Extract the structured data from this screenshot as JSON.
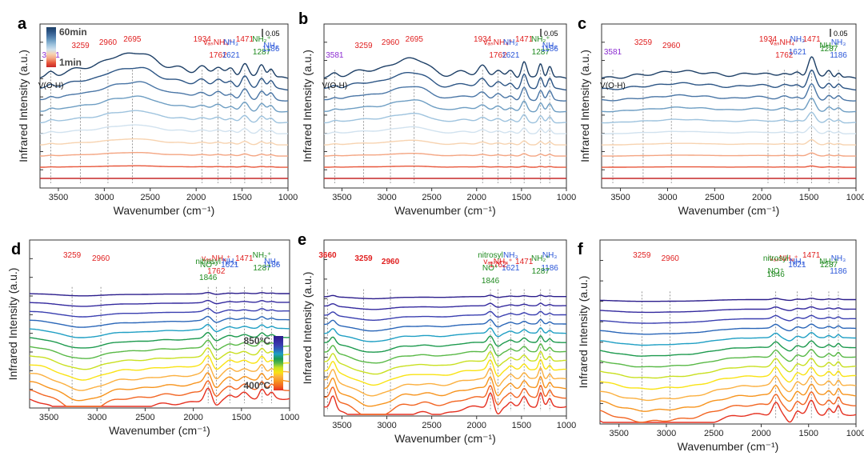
{
  "colors": {
    "time_scale": [
      "#c62828",
      "#e8573b",
      "#f4a582",
      "#f7d3b0",
      "#d1e2ef",
      "#9ec3de",
      "#6e9ec3",
      "#4a76a6",
      "#2c5585",
      "#1d3f66"
    ],
    "temp_scale": [
      "#e53020",
      "#f26522",
      "#f7941d",
      "#fbb040",
      "#f9e313",
      "#c9e021",
      "#59b947",
      "#1d9a4e",
      "#1f9fc4",
      "#2a66b8",
      "#3a3fb0",
      "#33299e",
      "#2b1d8c"
    ],
    "red": "#e02020",
    "blue": "#2a56d8",
    "green": "#1f8a1f",
    "purple": "#8b2bd1",
    "black": "#111111"
  },
  "chart_data": [
    {
      "panel": "a",
      "type": "line",
      "xlabel": "Wavenumber (cm⁻¹)",
      "ylabel": "Infrared Intensity (a.u.)",
      "xlim": [
        3700,
        1000
      ],
      "xticks": [
        3500,
        3000,
        2500,
        2000,
        1500,
        1000
      ],
      "scale_bar": "0.05",
      "legend": {
        "top": "60min",
        "bottom": "1min"
      },
      "annotations": [
        {
          "text": "2695",
          "x": 2695,
          "color": "red"
        },
        {
          "text": "2960",
          "x": 2960,
          "color": "red"
        },
        {
          "text": "3259",
          "x": 3259,
          "color": "red"
        },
        {
          "text": "1934",
          "x": 1934,
          "color": "red"
        },
        {
          "text": "vₐₛNH₄⁺",
          "x": 1762,
          "color": "red"
        },
        {
          "text": "1762",
          "x": 1762,
          "color": "red"
        },
        {
          "text": "1471",
          "x": 1471,
          "color": "red"
        },
        {
          "text": "NH₃",
          "x": 1621,
          "color": "blue"
        },
        {
          "text": "1621",
          "x": 1621,
          "color": "blue"
        },
        {
          "text": "NH₂⁺",
          "x": 1287,
          "color": "green"
        },
        {
          "text": "1287",
          "x": 1287,
          "color": "green"
        },
        {
          "text": "NH₃",
          "x": 1186,
          "color": "blue"
        },
        {
          "text": "1186",
          "x": 1186,
          "color": "blue"
        },
        {
          "text": "V(O-H)",
          "x": 3581,
          "color": "black"
        },
        {
          "text": "3581",
          "x": 3581,
          "color": "purple"
        }
      ],
      "dashed_lines": [
        3581,
        3259,
        2960,
        2695,
        1934,
        1762,
        1621,
        1471,
        1287,
        1186
      ],
      "series_count": 10,
      "bands": [
        [
          3581,
          0.5,
          40
        ],
        [
          3259,
          1.0,
          160
        ],
        [
          2960,
          0.9,
          110
        ],
        [
          2695,
          2.2,
          200
        ],
        [
          2450,
          0.9,
          180
        ],
        [
          2150,
          0.8,
          90
        ],
        [
          1934,
          1.1,
          60
        ],
        [
          1762,
          1.2,
          55
        ],
        [
          1621,
          0.9,
          40
        ],
        [
          1471,
          1.6,
          40
        ],
        [
          1287,
          1.4,
          35
        ],
        [
          1186,
          1.0,
          30
        ]
      ]
    },
    {
      "panel": "b",
      "type": "line",
      "xlabel": "Wavenumber (cm⁻¹)",
      "ylabel": "Infrared Intensity (a.u.)",
      "xlim": [
        3700,
        1000
      ],
      "xticks": [
        3500,
        3000,
        2500,
        2000,
        1500,
        1000
      ],
      "scale_bar": "0.05",
      "annotations": [
        {
          "text": "2695",
          "x": 2695,
          "color": "red"
        },
        {
          "text": "2960",
          "x": 2960,
          "color": "red"
        },
        {
          "text": "3259",
          "x": 3259,
          "color": "red"
        },
        {
          "text": "1934",
          "x": 1934,
          "color": "red"
        },
        {
          "text": "vₐₛNH₄⁺",
          "x": 1762,
          "color": "red"
        },
        {
          "text": "1762",
          "x": 1762,
          "color": "red"
        },
        {
          "text": "1471",
          "x": 1471,
          "color": "red"
        },
        {
          "text": "NH₃",
          "x": 1621,
          "color": "blue"
        },
        {
          "text": "1621",
          "x": 1621,
          "color": "blue"
        },
        {
          "text": "NH₂⁺",
          "x": 1287,
          "color": "green"
        },
        {
          "text": "1287",
          "x": 1287,
          "color": "green"
        },
        {
          "text": "NH₃",
          "x": 1186,
          "color": "blue"
        },
        {
          "text": "1186",
          "x": 1186,
          "color": "blue"
        },
        {
          "text": "V(O-H)",
          "x": 3581,
          "color": "black"
        },
        {
          "text": "3581",
          "x": 3581,
          "color": "purple"
        }
      ],
      "dashed_lines": [
        3581,
        3259,
        2960,
        2695,
        1934,
        1762,
        1621,
        1471,
        1287,
        1186
      ],
      "series_count": 10,
      "bands": [
        [
          3581,
          0.4,
          40
        ],
        [
          3259,
          0.8,
          150
        ],
        [
          2960,
          0.7,
          110
        ],
        [
          2695,
          2.0,
          170
        ],
        [
          2150,
          0.7,
          90
        ],
        [
          1934,
          1.2,
          50
        ],
        [
          1762,
          0.9,
          45
        ],
        [
          1621,
          0.7,
          35
        ],
        [
          1471,
          1.8,
          30
        ],
        [
          1287,
          1.5,
          25
        ],
        [
          1186,
          1.3,
          25
        ]
      ]
    },
    {
      "panel": "c",
      "type": "line",
      "xlabel": "Wavenumber (cm⁻¹)",
      "ylabel": "Infrared Intensity (a.u.)",
      "xlim": [
        3700,
        1000
      ],
      "xticks": [
        3500,
        3000,
        2500,
        2000,
        1500,
        1000
      ],
      "scale_bar": "0.05",
      "annotations": [
        {
          "text": "1471",
          "x": 1471,
          "color": "red"
        },
        {
          "text": "3259",
          "x": 3259,
          "color": "red"
        },
        {
          "text": "2960",
          "x": 2960,
          "color": "red"
        },
        {
          "text": "1934",
          "x": 1934,
          "color": "red"
        },
        {
          "text": "vₐₛNH₄⁺",
          "x": 1762,
          "color": "red"
        },
        {
          "text": "1762",
          "x": 1762,
          "color": "red"
        },
        {
          "text": "NH₃",
          "x": 1621,
          "color": "blue"
        },
        {
          "text": "1621",
          "x": 1621,
          "color": "blue"
        },
        {
          "text": "NH₂⁺",
          "x": 1287,
          "color": "green"
        },
        {
          "text": "1287",
          "x": 1287,
          "color": "green"
        },
        {
          "text": "NH₃",
          "x": 1186,
          "color": "blue"
        },
        {
          "text": "1186",
          "x": 1186,
          "color": "blue"
        },
        {
          "text": "V(O-H)",
          "x": 3581,
          "color": "black"
        },
        {
          "text": "3581",
          "x": 3581,
          "color": "purple"
        }
      ],
      "dashed_lines": [
        3581,
        3259,
        2960,
        1934,
        1762,
        1621,
        1471,
        1287,
        1186
      ],
      "series_count": 10,
      "bands": [
        [
          3259,
          0.3,
          150
        ],
        [
          2960,
          0.3,
          120
        ],
        [
          2700,
          0.6,
          250
        ],
        [
          2050,
          0.5,
          150
        ],
        [
          1762,
          0.5,
          50
        ],
        [
          1621,
          0.5,
          40
        ],
        [
          1471,
          2.3,
          40
        ],
        [
          1287,
          0.8,
          30
        ],
        [
          1186,
          0.6,
          25
        ]
      ]
    },
    {
      "panel": "d",
      "type": "line",
      "xlabel": "Wavenumber (cm⁻¹)",
      "ylabel": "Infrared Intensity (a.u.)",
      "xlim": [
        3700,
        1000
      ],
      "xticks": [
        3500,
        3000,
        2500,
        2000,
        1500,
        1000
      ],
      "legend": {
        "top": "850°C",
        "bottom": "400°C"
      },
      "annotations": [
        {
          "text": "3259",
          "x": 3259,
          "color": "red"
        },
        {
          "text": "2960",
          "x": 2960,
          "color": "red"
        },
        {
          "text": "NH₃",
          "x": 1621,
          "color": "blue"
        },
        {
          "text": "1621",
          "x": 1621,
          "color": "blue"
        },
        {
          "text": "1471",
          "x": 1471,
          "color": "red"
        },
        {
          "text": "NH₃",
          "x": 1186,
          "color": "blue"
        },
        {
          "text": "1186",
          "x": 1186,
          "color": "blue"
        },
        {
          "text": "vₐₛNH₄⁺",
          "x": 1762,
          "color": "red"
        },
        {
          "text": "1762",
          "x": 1762,
          "color": "red"
        },
        {
          "text": "NH₂⁺",
          "x": 1287,
          "color": "green"
        },
        {
          "text": "1287",
          "x": 1287,
          "color": "green"
        },
        {
          "text": "nitrosyl",
          "x": 1846,
          "color": "green"
        },
        {
          "text": "NO⁺",
          "x": 1846,
          "color": "green"
        },
        {
          "text": "1846",
          "x": 1846,
          "color": "green"
        }
      ],
      "dashed_lines": [
        3259,
        2960,
        1846,
        1762,
        1621,
        1471,
        1287,
        1186
      ],
      "series_count": 13,
      "bands": [
        [
          3150,
          -2.6,
          230
        ],
        [
          2550,
          -0.9,
          200
        ],
        [
          2100,
          -0.5,
          150
        ],
        [
          1846,
          1.4,
          35
        ],
        [
          1762,
          -0.9,
          40
        ],
        [
          1621,
          0.5,
          35
        ],
        [
          1471,
          0.6,
          40
        ],
        [
          1287,
          1.1,
          28
        ],
        [
          1186,
          0.6,
          25
        ]
      ]
    },
    {
      "panel": "e",
      "type": "line",
      "xlabel": "Wavenumber (cm⁻¹)",
      "ylabel": "Infrared Intensity (a.u.)",
      "xlim": [
        3700,
        1000
      ],
      "xticks": [
        3500,
        3000,
        2500,
        2000,
        1500,
        1000
      ],
      "annotations": [
        {
          "text": "3660",
          "x": 3660,
          "color": "red"
        },
        {
          "text": "3259",
          "x": 3259,
          "color": "red"
        },
        {
          "text": "2960",
          "x": 2960,
          "color": "red"
        },
        {
          "text": "NH₃",
          "x": 1621,
          "color": "blue"
        },
        {
          "text": "1621",
          "x": 1621,
          "color": "blue"
        },
        {
          "text": "1471",
          "x": 1471,
          "color": "red"
        },
        {
          "text": "NH₃",
          "x": 1186,
          "color": "blue"
        },
        {
          "text": "1186",
          "x": 1186,
          "color": "blue"
        },
        {
          "text": "vₐₛNH₄⁺",
          "x": 1762,
          "color": "red"
        },
        {
          "text": "1762",
          "x": 1762,
          "color": "red"
        },
        {
          "text": "NH₂⁺",
          "x": 1287,
          "color": "green"
        },
        {
          "text": "1287",
          "x": 1287,
          "color": "green"
        },
        {
          "text": "nitrosyl",
          "x": 1846,
          "color": "green"
        },
        {
          "text": "NO⁺",
          "x": 1846,
          "color": "green"
        },
        {
          "text": "1846",
          "x": 1846,
          "color": "green"
        }
      ],
      "dashed_lines": [
        3660,
        3259,
        2960,
        1846,
        1762,
        1621,
        1471,
        1287,
        1186
      ],
      "series_count": 13,
      "bands": [
        [
          3600,
          1.6,
          30
        ],
        [
          3150,
          -2.4,
          220
        ],
        [
          2700,
          -0.4,
          80
        ],
        [
          2400,
          -0.9,
          160
        ],
        [
          1846,
          1.6,
          30
        ],
        [
          1762,
          -1.0,
          35
        ],
        [
          1621,
          0.6,
          30
        ],
        [
          1471,
          1.0,
          30
        ],
        [
          1287,
          1.6,
          22
        ],
        [
          1186,
          0.8,
          20
        ]
      ]
    },
    {
      "panel": "f",
      "type": "line",
      "xlabel": "Wavenumber (cm⁻¹)",
      "ylabel": "Infrared Intensity (a.u.)",
      "xlim": [
        3700,
        1000
      ],
      "xticks": [
        3500,
        3000,
        2500,
        2000,
        1500,
        1000
      ],
      "annotations": [
        {
          "text": "3259",
          "x": 3259,
          "color": "red"
        },
        {
          "text": "2960",
          "x": 2960,
          "color": "red"
        },
        {
          "text": "NH₃",
          "x": 1621,
          "color": "blue"
        },
        {
          "text": "1621",
          "x": 1621,
          "color": "blue"
        },
        {
          "text": "NH₃",
          "x": 1186,
          "color": "blue"
        },
        {
          "text": "1186",
          "x": 1186,
          "color": "blue"
        },
        {
          "text": "1471",
          "x": 1471,
          "color": "red"
        },
        {
          "text": "vₐₛNH₄⁺",
          "x": 1762,
          "color": "red"
        },
        {
          "text": "NH₂⁺",
          "x": 1287,
          "color": "green"
        },
        {
          "text": "1287",
          "x": 1287,
          "color": "green"
        },
        {
          "text": "nitrosyl",
          "x": 1846,
          "color": "green"
        },
        {
          "text": "NO⁺",
          "x": 1846,
          "color": "green"
        },
        {
          "text": "1846",
          "x": 1846,
          "color": "green"
        }
      ],
      "dashed_lines": [
        3259,
        2960,
        1846,
        1621,
        1471,
        1287,
        1186
      ],
      "series_count": 13,
      "bands": [
        [
          3250,
          -2.0,
          330
        ],
        [
          2700,
          -1.0,
          220
        ],
        [
          1846,
          1.4,
          35
        ],
        [
          1700,
          -0.9,
          40
        ],
        [
          1621,
          0.6,
          30
        ],
        [
          1471,
          1.5,
          35
        ],
        [
          1287,
          0.7,
          25
        ],
        [
          1186,
          0.9,
          20
        ]
      ]
    }
  ]
}
